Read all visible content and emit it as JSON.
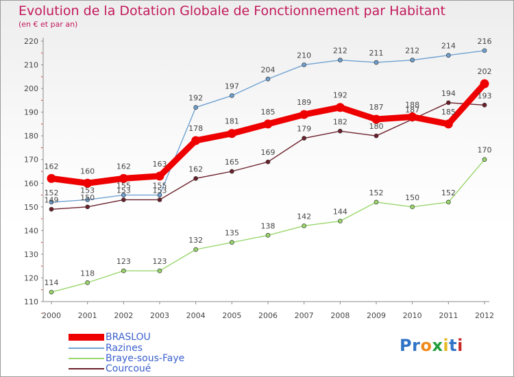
{
  "chart_data": {
    "type": "line",
    "title": "Evolution de la Dotation Globale de Fonctionnement par Habitant",
    "subtitle": "(en € et par an)",
    "xlabel": "",
    "ylabel": "",
    "x": [
      "2000",
      "2001",
      "2002",
      "2003",
      "2004",
      "2005",
      "2006",
      "2007",
      "2008",
      "2009",
      "2010",
      "2011",
      "2012"
    ],
    "ylim": [
      110,
      220
    ],
    "yticks": [
      110,
      120,
      130,
      140,
      150,
      160,
      170,
      180,
      190,
      200,
      210,
      220
    ],
    "grid": false,
    "legend": "bottom-left",
    "series": [
      {
        "name": "BRASLOU",
        "color": "#ee0000",
        "values": [
          162,
          160,
          162,
          163,
          178,
          181,
          185,
          189,
          192,
          187,
          188,
          185,
          202
        ]
      },
      {
        "name": "Razines",
        "color": "#6fa1d2",
        "values": [
          152,
          153,
          155,
          155,
          192,
          197,
          204,
          210,
          212,
          211,
          212,
          214,
          216
        ]
      },
      {
        "name": "Braye-sous-Faye",
        "color": "#99d66b",
        "values": [
          114,
          118,
          123,
          123,
          132,
          135,
          138,
          142,
          144,
          152,
          150,
          152,
          170
        ]
      },
      {
        "name": "Courcoué",
        "color": "#6b1f2a",
        "values": [
          149,
          150,
          153,
          153,
          162,
          165,
          169,
          179,
          182,
          180,
          187,
          194,
          193
        ]
      }
    ]
  },
  "logo": {
    "letters": [
      "P",
      "r",
      "o",
      "x",
      "i",
      "t",
      "i"
    ]
  }
}
